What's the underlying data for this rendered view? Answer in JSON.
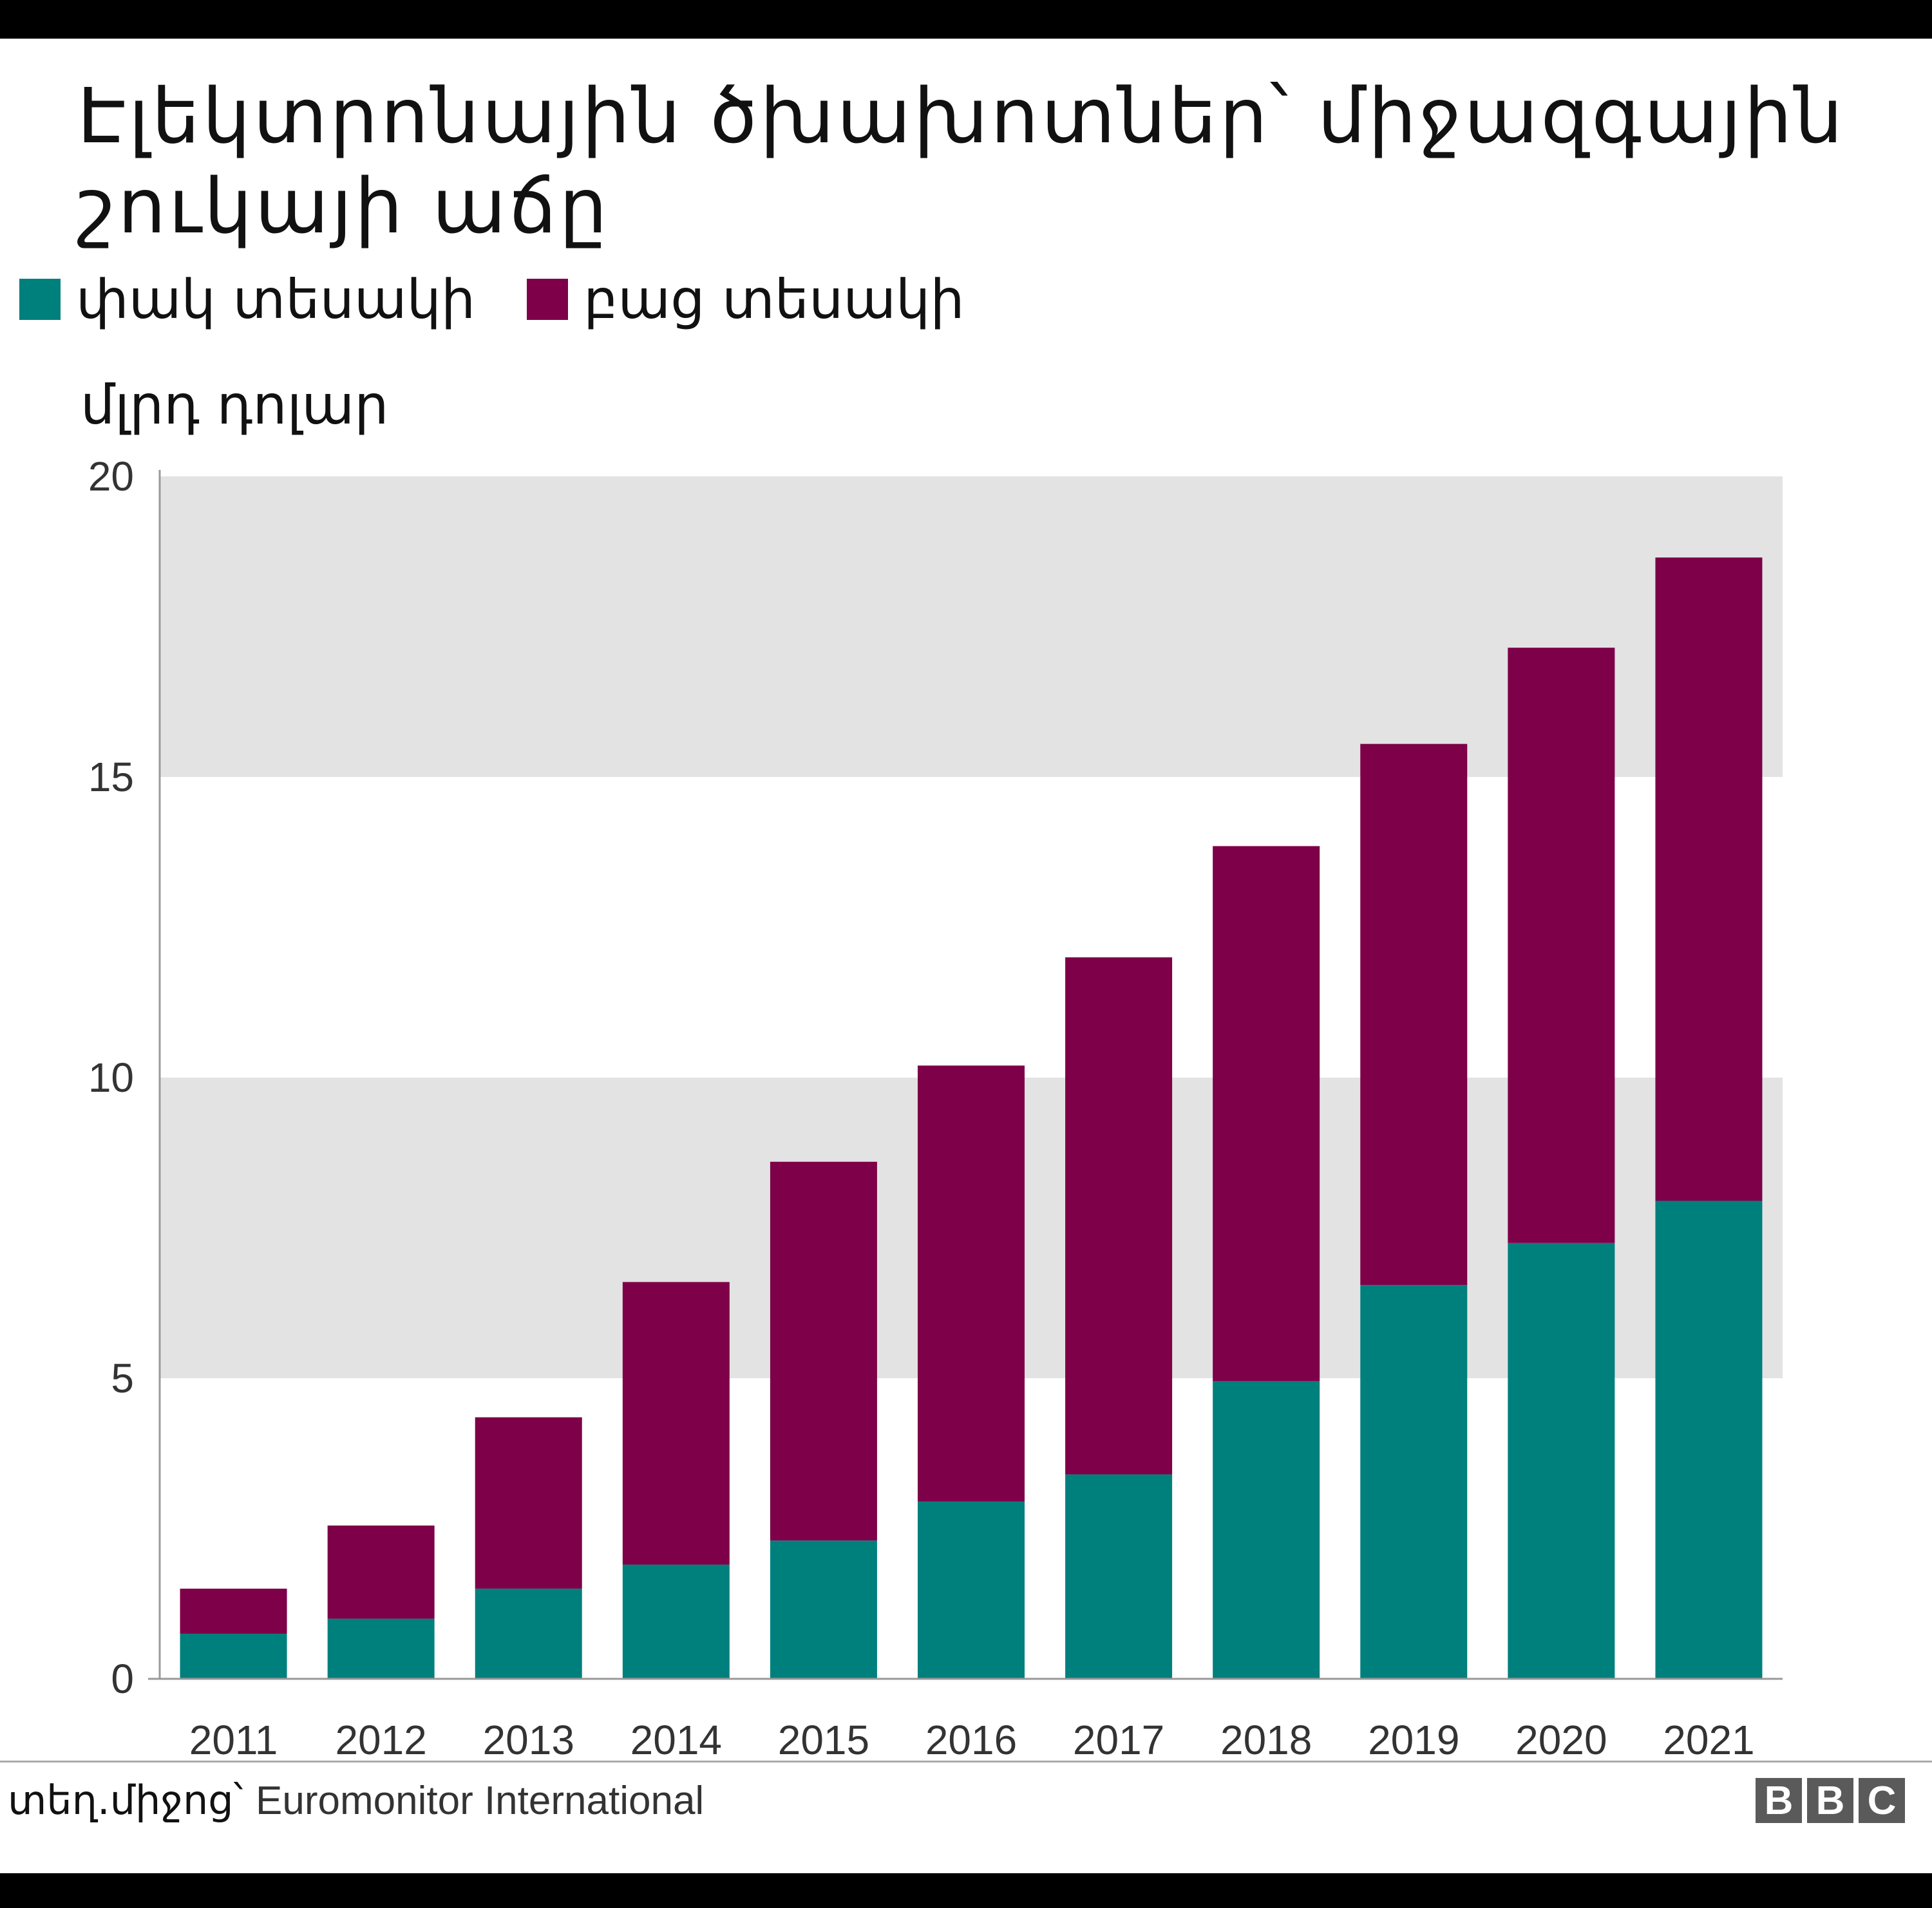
{
  "title": "Էլեկտրոնային ծխախոտներ՝ միջազգային շուկայի աճը",
  "legend": [
    {
      "label": "փակ տեսակի",
      "color": "#00807d"
    },
    {
      "label": "բաց տեսակի",
      "color": "#7d0048"
    }
  ],
  "unit_label": "մլրդ դոլար",
  "source": {
    "prefix": "տեղ.միջոց՝",
    "name": "Euromonitor International"
  },
  "logo": [
    "B",
    "B",
    "C"
  ],
  "chart_data": {
    "type": "bar",
    "stacked": true,
    "categories": [
      "2011",
      "2012",
      "2013",
      "2014",
      "2015",
      "2016",
      "2017",
      "2018",
      "2019",
      "2020",
      "2021"
    ],
    "series": [
      {
        "name": "փակ տեսակի",
        "color": "#00807d",
        "values": [
          0.75,
          1.0,
          1.5,
          1.9,
          2.3,
          2.95,
          3.4,
          4.95,
          6.55,
          7.25,
          7.95
        ]
      },
      {
        "name": "բաց տեսակի",
        "color": "#7d0048",
        "values": [
          0.75,
          1.55,
          2.85,
          4.7,
          6.3,
          7.25,
          8.6,
          8.9,
          9.0,
          9.9,
          10.7
        ]
      }
    ],
    "ylim": [
      0,
      20
    ],
    "yticks": [
      0,
      5,
      10,
      15,
      20
    ],
    "ylabel": "մլրդ դոլար",
    "xlabel": "",
    "grid": "alternating horizontal bands"
  }
}
